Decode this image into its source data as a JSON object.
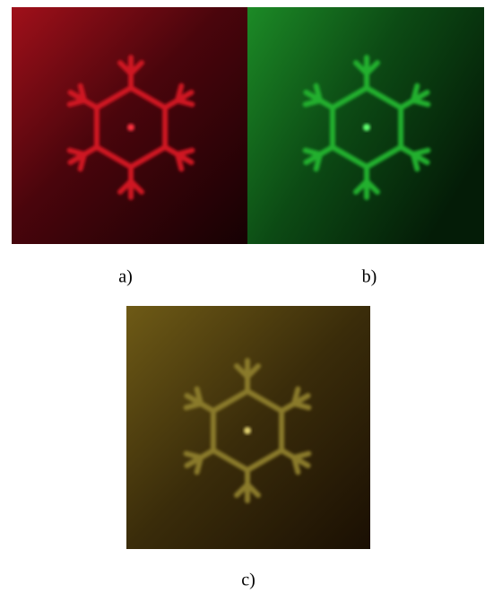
{
  "figure": {
    "panels": [
      {
        "label": "a)"
      },
      {
        "label": "b)"
      },
      {
        "label": "c)"
      }
    ]
  }
}
